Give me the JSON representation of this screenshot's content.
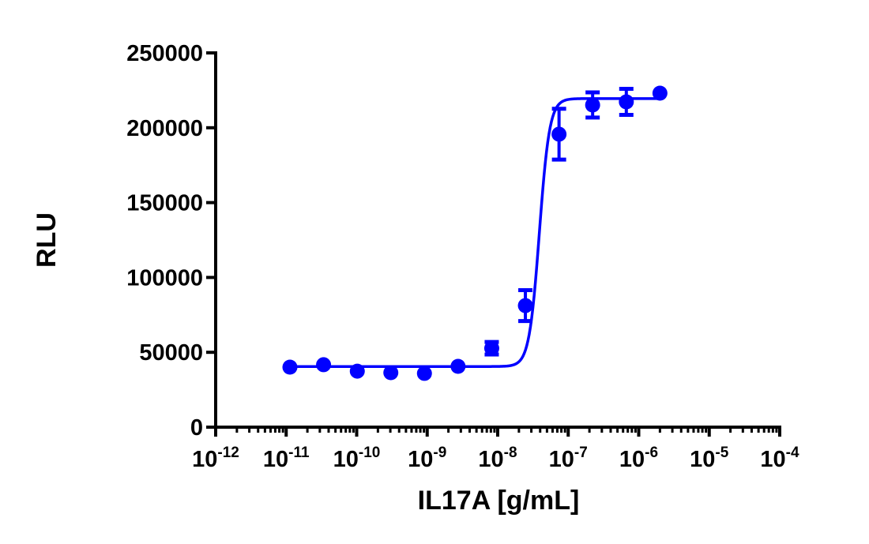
{
  "chart_data": {
    "type": "scatter",
    "title": "",
    "xlabel": "IL17A [g/mL]",
    "ylabel": "RLU",
    "xscale": "log",
    "xlim": [
      1e-12,
      0.0001
    ],
    "ylim": [
      0,
      250000
    ],
    "x_ticks": [
      -12,
      -11,
      -10,
      -9,
      -8,
      -7,
      -6,
      -5,
      -4
    ],
    "x_tick_labels": [
      "10-12",
      "10-11",
      "10-10",
      "10-9",
      "10-8",
      "10-7",
      "10-6",
      "10-5",
      "10-4"
    ],
    "y_ticks": [
      0,
      50000,
      100000,
      150000,
      200000,
      250000
    ],
    "y_tick_labels": [
      "0",
      "50000",
      "100000",
      "150000",
      "200000",
      "250000"
    ],
    "grid": false,
    "color": "#0000ff",
    "series": [
      {
        "x": [
          1.13e-11,
          3.39e-11,
          1.02e-10,
          3.05e-10,
          9.14e-10,
          2.74e-09,
          8.23e-09,
          2.47e-08,
          7.41e-08,
          2.22e-07,
          6.67e-07,
          2e-06
        ],
        "y": [
          40100,
          41700,
          37400,
          36400,
          35900,
          40600,
          52700,
          81200,
          195700,
          215200,
          217300,
          223100
        ],
        "error": [
          0,
          0,
          0,
          0,
          0,
          0,
          4200,
          10300,
          17000,
          8400,
          8700,
          0
        ]
      }
    ],
    "fit": {
      "model": "four-parameter logistic",
      "bottom": 40500,
      "top": 219500,
      "ec50": 3.9e-08,
      "hill": 6.0
    }
  }
}
